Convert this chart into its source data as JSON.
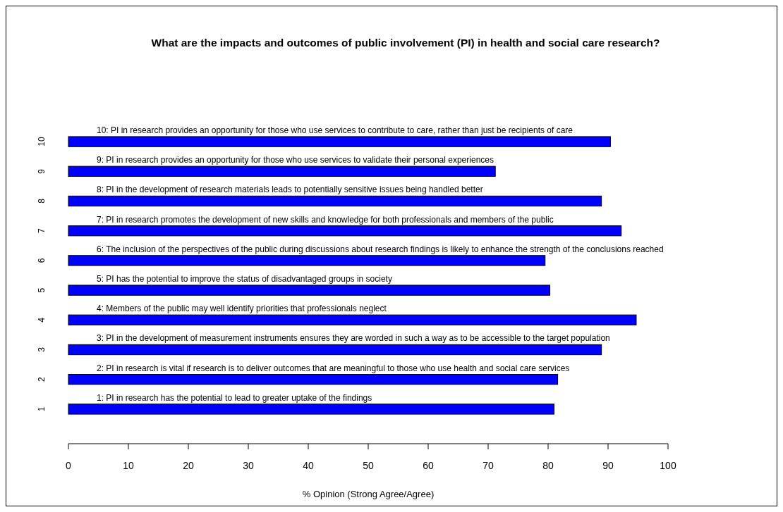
{
  "chart_data": {
    "type": "bar",
    "orientation": "horizontal",
    "title": "What are the impacts and outcomes of public involvement (PI) in health and social care research?",
    "xlabel": "% Opinion (Strong Agree/Agree)",
    "categories": [
      "10",
      "9",
      "8",
      "7",
      "6",
      "5",
      "4",
      "3",
      "2",
      "1"
    ],
    "values": [
      90.4,
      71.2,
      88.9,
      92.2,
      79.5,
      80.3,
      94.7,
      88.9,
      81.6,
      81.0
    ],
    "color": "#0000ff",
    "xlim": [
      0,
      100
    ],
    "xticks": [
      0,
      10,
      20,
      30,
      40,
      50,
      60,
      70,
      80,
      90,
      100
    ],
    "annotations": [
      "10: PI in research provides an opportunity for those who use services to contribute to care, rather than just be recipients of care",
      "9: PI in research provides an opportunity for those who use services to validate their personal experiences",
      "8: PI in the development of research materials leads to potentially sensitive issues being handled better",
      "7: PI in research promotes the development of new skills and knowledge for both professionals and members of the public",
      "6: The inclusion of the perspectives of the public during discussions about research findings is likely to enhance the strength of the conclusions reached",
      "5: PI has the potential to improve the status of disadvantaged groups in society",
      "4: Members of the public may well identify priorities that professionals neglect",
      "3: PI in the development of measurement instruments ensures they are worded in such a way as to be accessible to the target population",
      "2: PI in research is vital if research is to deliver outcomes that are meaningful to those who use health and social care services",
      "1: PI in research has the potential to lead to greater uptake of the findings"
    ]
  }
}
